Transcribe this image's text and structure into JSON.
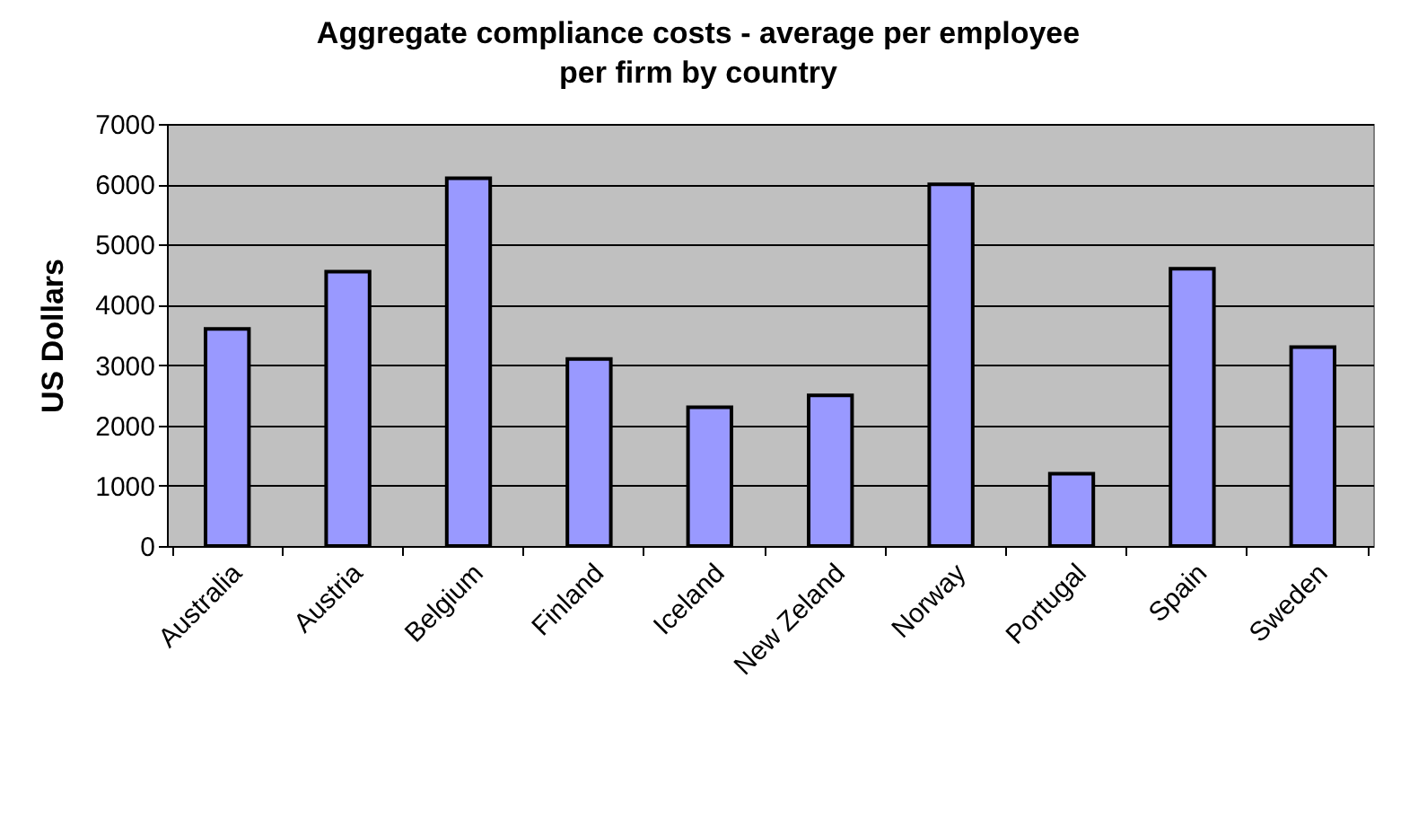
{
  "chart_data": {
    "type": "bar",
    "title": "Aggregate compliance costs - average per employee per firm by country",
    "ylabel": "US Dollars",
    "categories": [
      "Australia",
      "Austria",
      "Belgium",
      "Finland",
      "Iceland",
      "New Zeland",
      "Norway",
      "Portugal",
      "Spain",
      "Sweden"
    ],
    "values": [
      3600,
      4550,
      6100,
      3100,
      2300,
      2500,
      6000,
      1200,
      4600,
      3300
    ],
    "color": "#9999ff",
    "ylim": [
      0,
      7000
    ],
    "yticks": [
      0,
      1000,
      2000,
      3000,
      4000,
      5000,
      6000,
      7000
    ],
    "grid": "y"
  }
}
